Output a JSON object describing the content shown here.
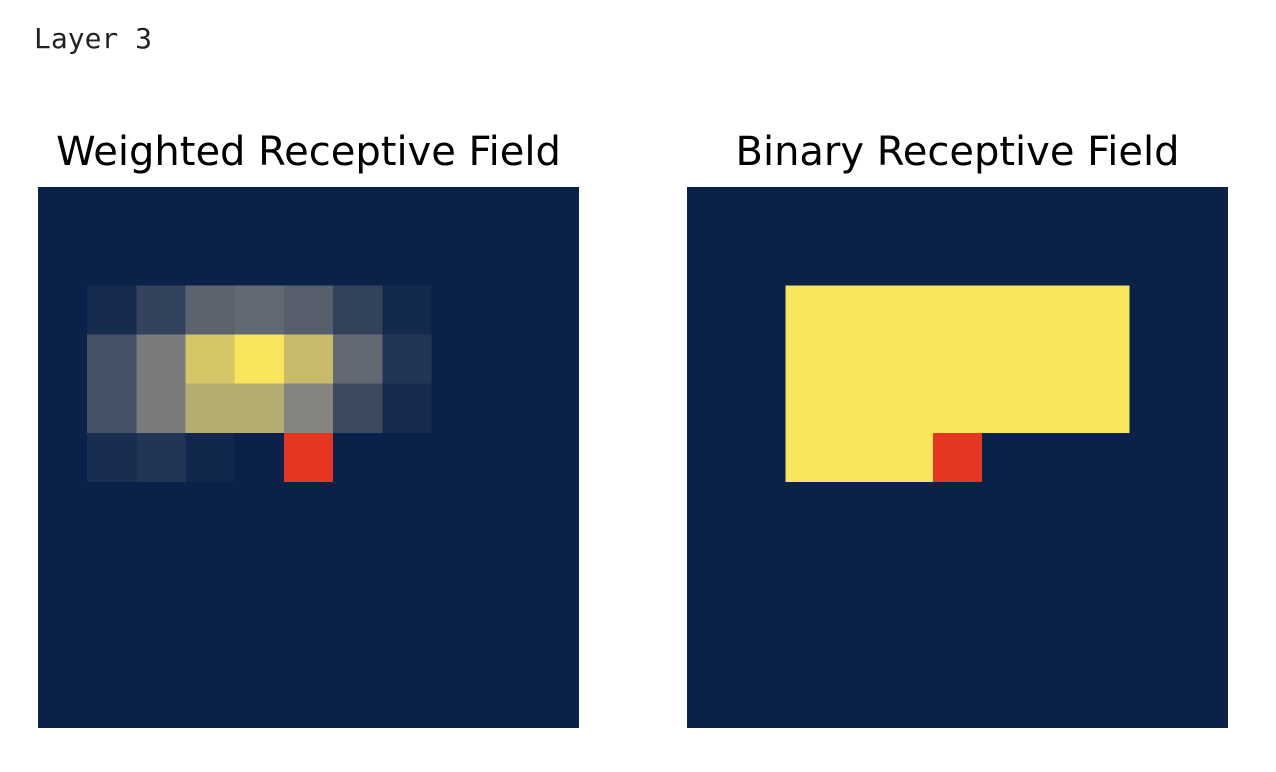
{
  "layer_label": "Layer 3",
  "chart_data": [
    {
      "type": "heatmap",
      "title": "Weighted Receptive Field",
      "grid_size": 11,
      "colorscale": {
        "low": "#0a2249",
        "mid": "#7f7f7f",
        "high": "#f8e55c",
        "marker": "#e63622"
      },
      "target_cell": {
        "row": 5,
        "col": 5
      },
      "values": [
        [
          0,
          0,
          0,
          0,
          0,
          0,
          0,
          0,
          0,
          0,
          0
        ],
        [
          0,
          0,
          0,
          0,
          0,
          0,
          0,
          0,
          0,
          0,
          0
        ],
        [
          0,
          0.05,
          0.18,
          0.35,
          0.38,
          0.33,
          0.17,
          0.04,
          0,
          0,
          0
        ],
        [
          0,
          0.25,
          0.48,
          0.85,
          1.0,
          0.8,
          0.38,
          0.1,
          0,
          0,
          0
        ],
        [
          0,
          0.25,
          0.48,
          0.72,
          0.72,
          0.52,
          0.22,
          0.05,
          0,
          0,
          0
        ],
        [
          0,
          0.06,
          0.1,
          0.03,
          0,
          0,
          0,
          0,
          0,
          0,
          0
        ],
        [
          0,
          0,
          0,
          0,
          0,
          0,
          0,
          0,
          0,
          0,
          0
        ],
        [
          0,
          0,
          0,
          0,
          0,
          0,
          0,
          0,
          0,
          0,
          0
        ],
        [
          0,
          0,
          0,
          0,
          0,
          0,
          0,
          0,
          0,
          0,
          0
        ],
        [
          0,
          0,
          0,
          0,
          0,
          0,
          0,
          0,
          0,
          0,
          0
        ],
        [
          0,
          0,
          0,
          0,
          0,
          0,
          0,
          0,
          0,
          0,
          0
        ]
      ]
    },
    {
      "type": "heatmap",
      "title": "Binary Receptive Field",
      "grid_size": 11,
      "colorscale": {
        "low": "#0a2249",
        "mid": "#7f7f7f",
        "high": "#f8e55c",
        "marker": "#e63622"
      },
      "target_cell": {
        "row": 5,
        "col": 5
      },
      "values": [
        [
          0,
          0,
          0,
          0,
          0,
          0,
          0,
          0,
          0,
          0,
          0
        ],
        [
          0,
          0,
          0,
          0,
          0,
          0,
          0,
          0,
          0,
          0,
          0
        ],
        [
          0,
          0,
          1,
          1,
          1,
          1,
          1,
          1,
          1,
          0,
          0
        ],
        [
          0,
          0,
          1,
          1,
          1,
          1,
          1,
          1,
          1,
          0,
          0
        ],
        [
          0,
          0,
          1,
          1,
          1,
          1,
          1,
          1,
          1,
          0,
          0
        ],
        [
          0,
          0,
          1,
          1,
          1,
          0,
          0,
          0,
          0,
          0,
          0
        ],
        [
          0,
          0,
          0,
          0,
          0,
          0,
          0,
          0,
          0,
          0,
          0
        ],
        [
          0,
          0,
          0,
          0,
          0,
          0,
          0,
          0,
          0,
          0,
          0
        ],
        [
          0,
          0,
          0,
          0,
          0,
          0,
          0,
          0,
          0,
          0,
          0
        ],
        [
          0,
          0,
          0,
          0,
          0,
          0,
          0,
          0,
          0,
          0,
          0
        ],
        [
          0,
          0,
          0,
          0,
          0,
          0,
          0,
          0,
          0,
          0,
          0
        ]
      ]
    }
  ]
}
